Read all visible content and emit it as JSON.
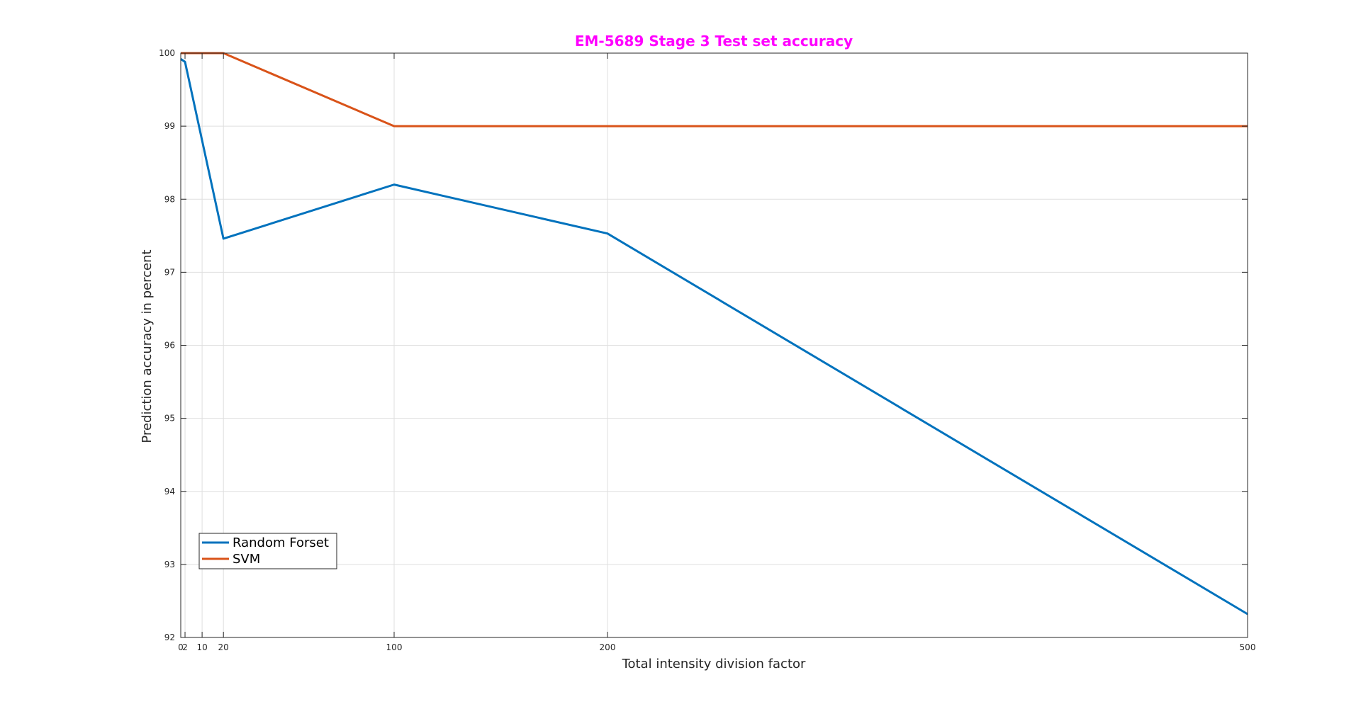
{
  "chart_data": {
    "type": "line",
    "title": "EM-5689 Stage 3 Test set accuracy",
    "title_color": "#ff00ff",
    "xlabel": "Total intensity division factor",
    "ylabel": "Prediction accuracy in percent",
    "xlim": [
      0,
      500
    ],
    "ylim": [
      92,
      100
    ],
    "x_ticks": [
      0,
      2,
      10,
      20,
      100,
      200,
      500
    ],
    "x_tick_labels": [
      "0",
      "2",
      "10",
      "20",
      "100",
      "200",
      "500"
    ],
    "y_ticks": [
      92,
      93,
      94,
      95,
      96,
      97,
      98,
      99,
      100
    ],
    "y_tick_labels": [
      "92",
      "93",
      "94",
      "95",
      "96",
      "97",
      "98",
      "99",
      "100"
    ],
    "grid": true,
    "legend_position": "bottom-left",
    "series": [
      {
        "name": "Random Forset",
        "color": "#0072bd",
        "x": [
          0,
          2,
          20,
          100,
          200,
          500
        ],
        "y": [
          99.92,
          99.88,
          97.46,
          98.2,
          97.53,
          92.32
        ]
      },
      {
        "name": "SVM",
        "color": "#d95319",
        "x": [
          0,
          2,
          20,
          100,
          200,
          500
        ],
        "y": [
          100,
          100,
          100,
          99,
          99,
          99
        ]
      }
    ]
  }
}
